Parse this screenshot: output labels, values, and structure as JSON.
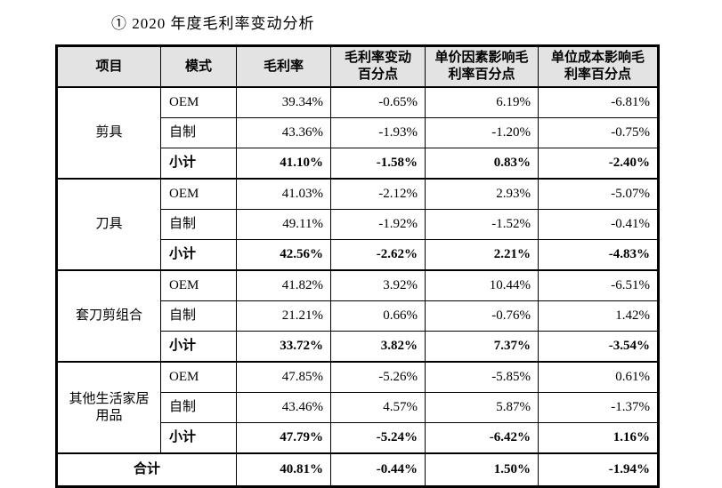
{
  "title": "①  2020 年度毛利率变动分析",
  "colors": {
    "header_background": "#e3e3e3",
    "border": "#000000",
    "text": "#000000",
    "page_background": "#ffffff"
  },
  "table": {
    "headers": [
      [
        "项目"
      ],
      [
        "模式"
      ],
      [
        "毛利率"
      ],
      [
        "毛利率变动",
        "百分点"
      ],
      [
        "单价因素影响毛",
        "利率百分点"
      ],
      [
        "单位成本影响毛",
        "利率百分点"
      ]
    ],
    "groups": [
      {
        "name": "剪具",
        "rows": [
          {
            "mode": "OEM",
            "bold": false,
            "values": [
              "39.34%",
              "-0.65%",
              "6.19%",
              "-6.81%"
            ]
          },
          {
            "mode": "自制",
            "bold": false,
            "values": [
              "43.36%",
              "-1.93%",
              "-1.20%",
              "-0.75%"
            ]
          },
          {
            "mode": "小计",
            "bold": true,
            "values": [
              "41.10%",
              "-1.58%",
              "0.83%",
              "-2.40%"
            ]
          }
        ]
      },
      {
        "name": "刀具",
        "rows": [
          {
            "mode": "OEM",
            "bold": false,
            "values": [
              "41.03%",
              "-2.12%",
              "2.93%",
              "-5.07%"
            ]
          },
          {
            "mode": "自制",
            "bold": false,
            "values": [
              "49.11%",
              "-1.92%",
              "-1.52%",
              "-0.41%"
            ]
          },
          {
            "mode": "小计",
            "bold": true,
            "values": [
              "42.56%",
              "-2.62%",
              "2.21%",
              "-4.83%"
            ]
          }
        ]
      },
      {
        "name": "套刀剪组合",
        "rows": [
          {
            "mode": "OEM",
            "bold": false,
            "values": [
              "41.82%",
              "3.92%",
              "10.44%",
              "-6.51%"
            ]
          },
          {
            "mode": "自制",
            "bold": false,
            "values": [
              "21.21%",
              "0.66%",
              "-0.76%",
              "1.42%"
            ]
          },
          {
            "mode": "小计",
            "bold": true,
            "values": [
              "33.72%",
              "3.82%",
              "7.37%",
              "-3.54%"
            ]
          }
        ]
      },
      {
        "name": "其他生活家居用品",
        "rows": [
          {
            "mode": "OEM",
            "bold": false,
            "values": [
              "47.85%",
              "-5.26%",
              "-5.85%",
              "0.61%"
            ]
          },
          {
            "mode": "自制",
            "bold": false,
            "values": [
              "43.46%",
              "4.57%",
              "5.87%",
              "-1.37%"
            ]
          },
          {
            "mode": "小计",
            "bold": true,
            "values": [
              "47.79%",
              "-5.24%",
              "-6.42%",
              "1.16%"
            ]
          }
        ]
      }
    ],
    "total": {
      "label": "合计",
      "values": [
        "40.81%",
        "-0.44%",
        "1.50%",
        "-1.94%"
      ]
    }
  }
}
